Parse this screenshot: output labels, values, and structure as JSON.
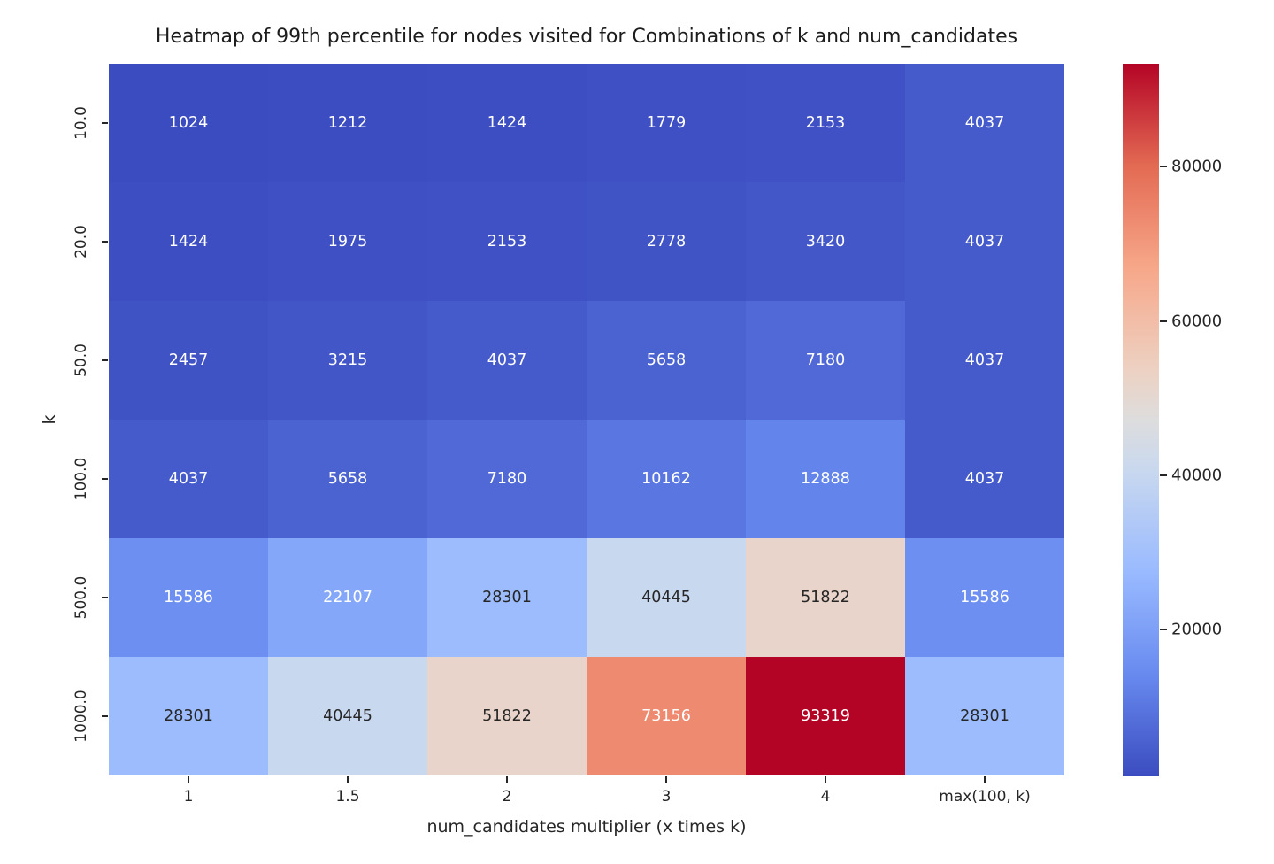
{
  "chart_data": {
    "type": "heatmap",
    "title": "Heatmap of 99th percentile for nodes visited for Combinations of k and num_candidates",
    "xlabel": "num_candidates multiplier (x times k)",
    "ylabel": "k",
    "x_categories": [
      "1",
      "1.5",
      "2",
      "3",
      "4",
      "max(100, k)"
    ],
    "y_categories": [
      "10.0",
      "20.0",
      "50.0",
      "100.0",
      "500.0",
      "1000.0"
    ],
    "values": [
      [
        1024,
        1212,
        1424,
        1779,
        2153,
        4037
      ],
      [
        1424,
        1975,
        2153,
        2778,
        3420,
        4037
      ],
      [
        2457,
        3215,
        4037,
        5658,
        7180,
        4037
      ],
      [
        4037,
        5658,
        7180,
        10162,
        12888,
        4037
      ],
      [
        15586,
        22107,
        28301,
        40445,
        51822,
        15586
      ],
      [
        28301,
        40445,
        51822,
        73156,
        93319,
        28301
      ]
    ],
    "vmin": 1024,
    "vmax": 93319,
    "colormap": "coolwarm",
    "colormap_anchors": [
      {
        "t": 0.0,
        "color": "#3b4cc0"
      },
      {
        "t": 0.143,
        "color": "#688aef"
      },
      {
        "t": 0.286,
        "color": "#99baff"
      },
      {
        "t": 0.429,
        "color": "#c9d8ef"
      },
      {
        "t": 0.5,
        "color": "#dddddd"
      },
      {
        "t": 0.571,
        "color": "#edd1c2"
      },
      {
        "t": 0.714,
        "color": "#f7a789"
      },
      {
        "t": 0.857,
        "color": "#e36a53"
      },
      {
        "t": 1.0,
        "color": "#b40426"
      }
    ],
    "colorbar_ticks": [
      20000,
      40000,
      60000,
      80000
    ],
    "annotation_text_colors": {
      "dark": "#262626",
      "light": "#ffffff"
    },
    "colorbar_position": "right",
    "grid": false
  }
}
